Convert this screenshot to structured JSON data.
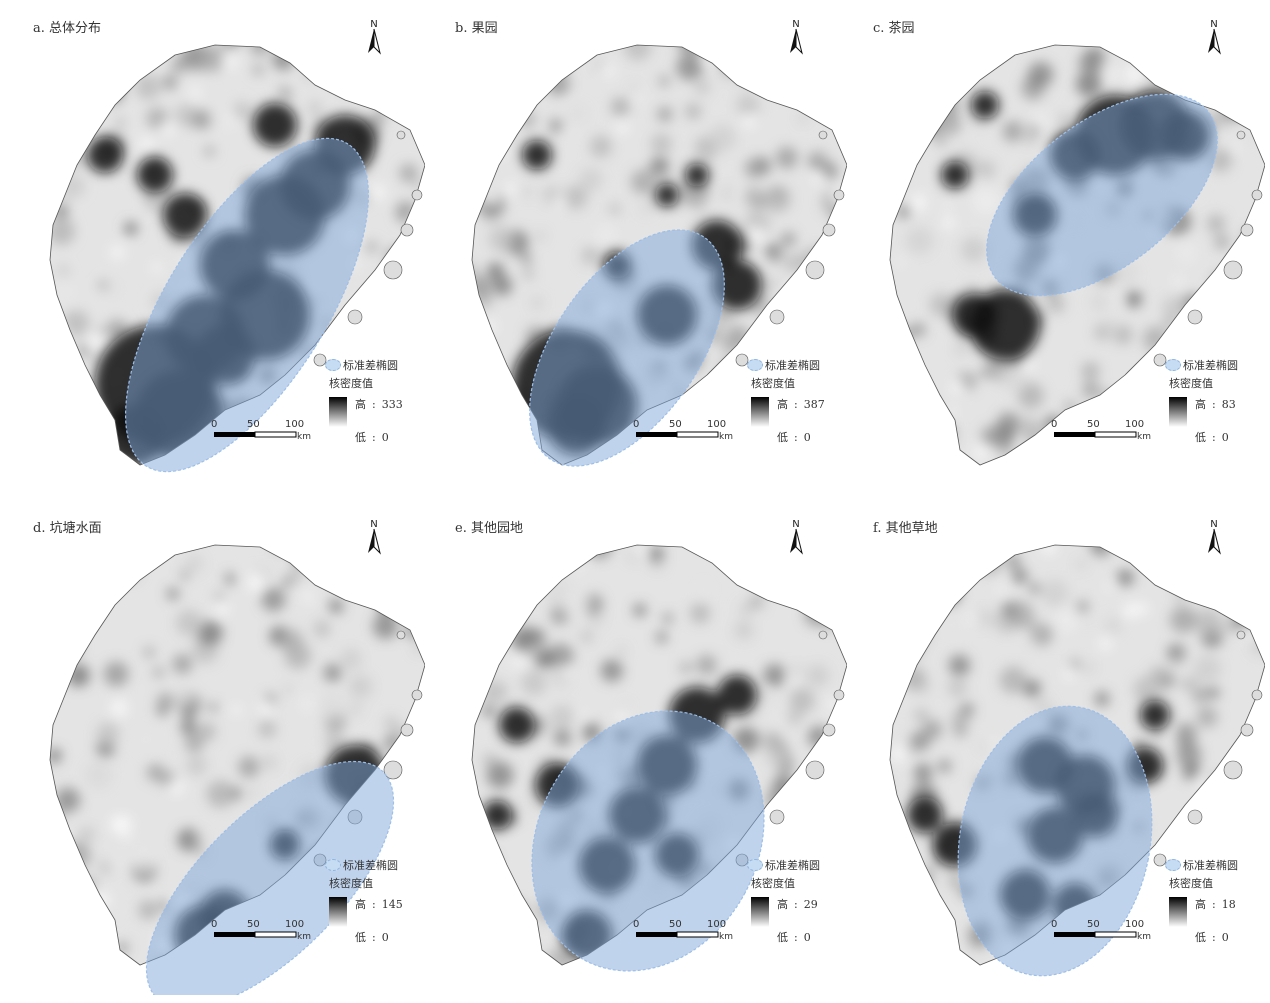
{
  "panels": [
    {
      "title": "a. 总体分布",
      "legend_high": "333",
      "legend_low": "0",
      "ellipse": {
        "cx": 232,
        "cy": 290,
        "rx": 80,
        "ry": 190,
        "angle": 32
      },
      "hotspots": [
        [
          140,
          370,
          60
        ],
        [
          165,
          400,
          45
        ],
        [
          120,
          420,
          30
        ],
        [
          220,
          250,
          35
        ],
        [
          270,
          200,
          40
        ],
        [
          300,
          170,
          35
        ],
        [
          330,
          130,
          30
        ],
        [
          250,
          300,
          45
        ],
        [
          190,
          320,
          40
        ],
        [
          210,
          340,
          30
        ],
        [
          90,
          140,
          18
        ],
        [
          170,
          200,
          22
        ],
        [
          140,
          160,
          18
        ],
        [
          260,
          110,
          22
        ]
      ]
    },
    {
      "title": "b. 果园",
      "legend_high": "387",
      "legend_low": "0",
      "ellipse": {
        "cx": 190,
        "cy": 333,
        "rx": 72,
        "ry": 135,
        "angle": 35
      },
      "hotspots": [
        [
          130,
          370,
          55
        ],
        [
          160,
          390,
          40
        ],
        [
          140,
          410,
          30
        ],
        [
          230,
          300,
          30
        ],
        [
          280,
          230,
          25
        ],
        [
          300,
          270,
          25
        ],
        [
          100,
          140,
          15
        ],
        [
          230,
          180,
          12
        ],
        [
          260,
          160,
          12
        ],
        [
          180,
          250,
          14
        ]
      ]
    },
    {
      "title": "c. 茶园",
      "legend_high": "83",
      "legend_low": "0",
      "ellipse": {
        "cx": 247,
        "cy": 180,
        "rx": 72,
        "ry": 135,
        "angle": 52
      },
      "hotspots": [
        [
          260,
          120,
          40
        ],
        [
          300,
          110,
          35
        ],
        [
          330,
          120,
          25
        ],
        [
          220,
          140,
          25
        ],
        [
          180,
          200,
          22
        ],
        [
          150,
          310,
          35
        ],
        [
          120,
          300,
          22
        ],
        [
          100,
          160,
          14
        ],
        [
          130,
          90,
          14
        ]
      ]
    },
    {
      "title": "d. 坑塘水面",
      "legend_high": "145",
      "legend_low": "0",
      "ellipse": {
        "cx": 255,
        "cy": 370,
        "rx": 70,
        "ry": 160,
        "angle": 45
      },
      "hotspots": [
        [
          340,
          260,
          30
        ],
        [
          360,
          300,
          25
        ],
        [
          320,
          360,
          30
        ],
        [
          190,
          420,
          30
        ],
        [
          210,
          400,
          25
        ],
        [
          120,
          500,
          20
        ],
        [
          270,
          330,
          15
        ]
      ]
    },
    {
      "title": "e. 其他园地",
      "legend_high": "29",
      "legend_low": "0",
      "ellipse": {
        "cx": 211,
        "cy": 326,
        "rx": 110,
        "ry": 135,
        "angle": 28
      },
      "hotspots": [
        [
          230,
          250,
          30
        ],
        [
          260,
          200,
          28
        ],
        [
          200,
          300,
          28
        ],
        [
          170,
          350,
          28
        ],
        [
          240,
          340,
          22
        ],
        [
          120,
          270,
          22
        ],
        [
          150,
          420,
          25
        ],
        [
          300,
          180,
          20
        ],
        [
          80,
          210,
          18
        ],
        [
          60,
          300,
          15
        ]
      ]
    },
    {
      "title": "f. 其他草地",
      "legend_high": "18",
      "legend_low": "0",
      "ellipse": {
        "cx": 200,
        "cy": 326,
        "rx": 95,
        "ry": 136,
        "angle": 11
      },
      "hotspots": [
        [
          190,
          250,
          28
        ],
        [
          230,
          270,
          30
        ],
        [
          200,
          320,
          28
        ],
        [
          240,
          300,
          22
        ],
        [
          170,
          380,
          25
        ],
        [
          220,
          390,
          22
        ],
        [
          100,
          330,
          22
        ],
        [
          70,
          300,
          18
        ],
        [
          300,
          200,
          15
        ],
        [
          290,
          250,
          18
        ]
      ]
    }
  ],
  "legend": {
    "ellipse_label": "标准差椭圆",
    "density_label": "核密度值",
    "high_label": "高",
    "low_label": "低",
    "colon": ":"
  },
  "scale": {
    "ticks": [
      "0",
      "50",
      "100"
    ],
    "unit": "km"
  },
  "north_label": "N"
}
